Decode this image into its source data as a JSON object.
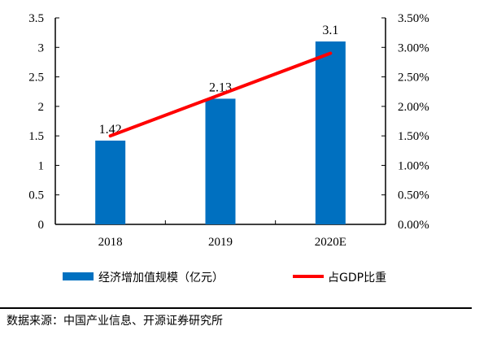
{
  "chart_data": {
    "type": "bar",
    "categories": [
      "2018",
      "2019",
      "2020E"
    ],
    "series": [
      {
        "name": "经济增加值规模（亿元）",
        "type": "bar",
        "axis": "left",
        "values": [
          1.42,
          2.13,
          3.1
        ],
        "data_labels": [
          "1.42",
          "2.13",
          "3.1"
        ],
        "color": "#0070C0"
      },
      {
        "name": "占GDP比重",
        "type": "line",
        "axis": "right",
        "values": [
          1.5,
          2.2,
          2.9
        ],
        "unit": "%",
        "color": "#FF0000"
      }
    ],
    "y_left": {
      "lim": [
        0,
        3.5
      ],
      "ticks": [
        "0",
        "0.5",
        "1",
        "1.5",
        "2",
        "2.5",
        "3",
        "3.5"
      ]
    },
    "y_right": {
      "lim": [
        0,
        3.5
      ],
      "ticks": [
        "0.00%",
        "0.50%",
        "1.00%",
        "1.50%",
        "2.00%",
        "2.50%",
        "3.00%",
        "3.50%"
      ]
    },
    "grid": false,
    "legend": "bottom"
  },
  "source": "数据来源：中国产业信息、开源证券研究所"
}
